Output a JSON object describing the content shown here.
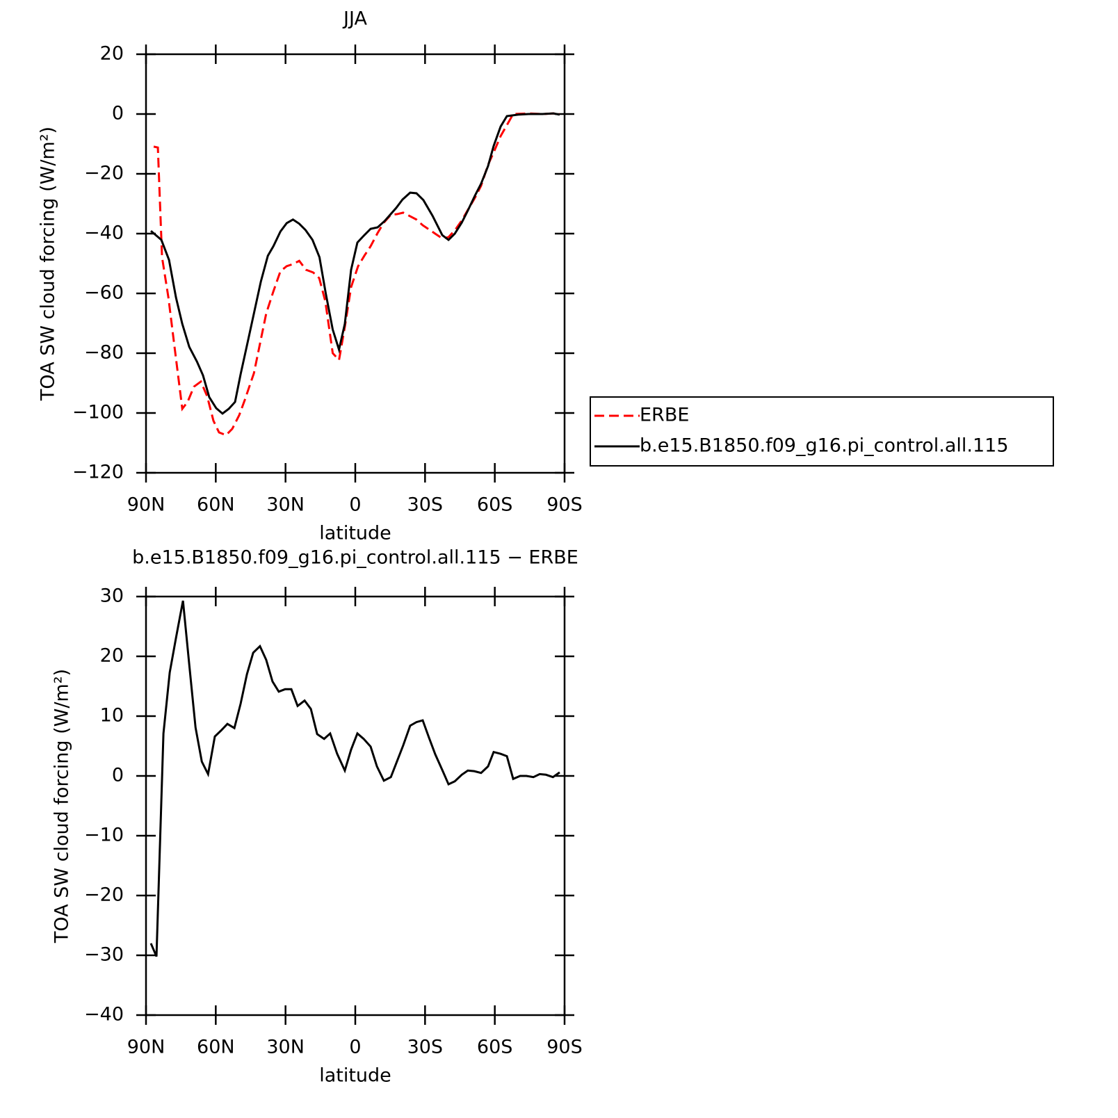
{
  "chart_data": [
    {
      "type": "line",
      "title": "JJA",
      "xlabel": "latitude",
      "ylabel": "TOA SW cloud forcing (W/m²)",
      "xlim": [
        90,
        -90
      ],
      "xticks": [
        {
          "value": 90,
          "label": "90N"
        },
        {
          "value": 60,
          "label": "60N"
        },
        {
          "value": 30,
          "label": "30N"
        },
        0,
        {
          "value": -30,
          "label": "30S"
        },
        {
          "value": -60,
          "label": "60S"
        },
        {
          "value": -90,
          "label": "90S"
        }
      ],
      "ylim": [
        -120,
        20
      ],
      "yticks": [
        {
          "value": -120,
          "label": "−120"
        },
        {
          "value": -100,
          "label": "−100"
        },
        {
          "value": -80,
          "label": "−80"
        },
        {
          "value": -60,
          "label": "−60"
        },
        {
          "value": -40,
          "label": "−40"
        },
        {
          "value": -20,
          "label": "−20"
        },
        0,
        20
      ],
      "legend": "right",
      "series": [
        {
          "name": "ERBE",
          "color": "#ff0000",
          "dashed": true,
          "x": [
            86.7,
            84.9,
            83.1,
            80.4,
            77.7,
            74.4,
            72.1,
            69.4,
            66.4,
            63.7,
            61.0,
            58.6,
            55.6,
            52.9,
            49.9,
            47.5,
            43.6,
            38.3,
            35.3,
            32.2,
            29.5,
            26.8,
            24.1,
            21.2,
            18.1,
            15.5,
            12.9,
            9.7,
            7.0,
            4.5,
            1.8,
            -1.2,
            -3.9,
            -6.6,
            -9.6,
            -12.3,
            -15.3,
            -17.9,
            -20.6,
            -23.6,
            -26.3,
            -29.0,
            -31.7,
            -34.7,
            -37.4,
            -40.1,
            -43.1,
            -45.8,
            -48.4,
            -51.4,
            -54.1,
            -57.1,
            -59.8,
            -62.5,
            -65.2,
            -67.9,
            -74.5,
            -80.5,
            -85.2,
            -87.9
          ],
          "values": [
            -10.9,
            -11.2,
            -47.9,
            -61.2,
            -78.1,
            -98.6,
            -96.3,
            -91.2,
            -89.5,
            -94.4,
            -102.6,
            -106.5,
            -107.4,
            -105.3,
            -100.7,
            -95.6,
            -86.7,
            -66.7,
            -59.5,
            -52.6,
            -50.9,
            -50.2,
            -49.1,
            -52.1,
            -53,
            -54.9,
            -62.6,
            -80,
            -82.3,
            -71.2,
            -57.9,
            -50.9,
            -47.4,
            -44.2,
            -39.8,
            -36.3,
            -33.7,
            -33.5,
            -33,
            -34.2,
            -35.3,
            -37.2,
            -38.6,
            -40.2,
            -41.6,
            -41.2,
            -38.6,
            -35.6,
            -32.1,
            -28.1,
            -24,
            -17,
            -12.3,
            -7.4,
            -3.7,
            0,
            0.2,
            0,
            0.2,
            0
          ]
        },
        {
          "name": "b.e15.B1850.f09_g16.pi_control.all.115",
          "color": "#000000",
          "dashed": false,
          "x": [
            87.9,
            83.4,
            80.1,
            77.1,
            74.4,
            71.4,
            68.1,
            65.5,
            62.8,
            59.8,
            57.1,
            54.4,
            51.7,
            49.3,
            46.0,
            40.6,
            37.6,
            35.2,
            32.2,
            29.5,
            26.8,
            24.1,
            21.4,
            18.4,
            15.4,
            12.7,
            9.7,
            7.0,
            4.5,
            1.8,
            -0.9,
            -3.9,
            -6.6,
            -9.6,
            -12.6,
            -15.0,
            -17.6,
            -20.3,
            -23.6,
            -26.3,
            -29.3,
            -33.2,
            -37.4,
            -40.1,
            -42.8,
            -45.8,
            -48.4,
            -51.4,
            -54.1,
            -57.1,
            -59.5,
            -62.5,
            -65.2,
            -70.0,
            -74.5,
            -80.5,
            -85.2,
            -87.9
          ],
          "values": [
            -39.1,
            -42.1,
            -48.8,
            -61.4,
            -70.2,
            -77.9,
            -82.8,
            -87.4,
            -94.7,
            -98.4,
            -100.2,
            -98.6,
            -96.3,
            -87,
            -75.3,
            -56,
            -47.4,
            -44.2,
            -39.3,
            -36.5,
            -35.3,
            -36.7,
            -38.8,
            -42.1,
            -47.9,
            -60,
            -72.1,
            -78.8,
            -70.2,
            -52.1,
            -43,
            -40.5,
            -38.4,
            -37.9,
            -35.8,
            -33.7,
            -31.4,
            -28.6,
            -26.3,
            -26.5,
            -28.8,
            -34,
            -40.5,
            -42.1,
            -40,
            -36.3,
            -32.3,
            -27.4,
            -23.3,
            -17.4,
            -10.7,
            -4.2,
            -0.7,
            -0.2,
            0,
            0,
            0.2,
            -0.2
          ]
        }
      ]
    },
    {
      "type": "line",
      "title": "b.e15.B1850.f09_g16.pi_control.all.115 − ERBE",
      "xlabel": "latitude",
      "ylabel": "TOA SW cloud forcing (W/m²)",
      "xlim": [
        90,
        -90
      ],
      "xticks": [
        {
          "value": 90,
          "label": "90N"
        },
        {
          "value": 60,
          "label": "60N"
        },
        {
          "value": 30,
          "label": "30N"
        },
        0,
        {
          "value": -30,
          "label": "30S"
        },
        {
          "value": -60,
          "label": "60S"
        },
        {
          "value": -90,
          "label": "90S"
        }
      ],
      "ylim": [
        -40,
        30
      ],
      "yticks": [
        {
          "value": -40,
          "label": "−40"
        },
        {
          "value": -30,
          "label": "−30"
        },
        {
          "value": -20,
          "label": "−20"
        },
        {
          "value": -10,
          "label": "−10"
        },
        0,
        10,
        20,
        30
      ],
      "series": [
        {
          "color": "#000000",
          "dashed": false,
          "x": [
            87.9,
            85.5,
            82.5,
            79.8,
            77.1,
            74.1,
            71.4,
            68.7,
            66.0,
            63.3,
            60.4,
            57.7,
            55.0,
            52.0,
            49.3,
            46.6,
            43.9,
            41.0,
            38.3,
            35.6,
            32.9,
            30.2,
            27.5,
            24.8,
            21.8,
            19.1,
            16.4,
            13.4,
            10.8,
            7.8,
            4.5,
            1.8,
            -0.9,
            -3.6,
            -6.6,
            -9.3,
            -12.3,
            -15.3,
            -17.6,
            -20.6,
            -23.6,
            -26.3,
            -29.0,
            -31.7,
            -34.4,
            -37.4,
            -40.1,
            -42.8,
            -45.8,
            -48.4,
            -51.1,
            -54.1,
            -57.1,
            -59.5,
            -62.5,
            -65.2,
            -67.9,
            -70.9,
            -73.6,
            -76.6,
            -79.3,
            -82.0,
            -85.0,
            -87.9
          ],
          "values": [
            -28,
            -30.2,
            7.1,
            17.3,
            23.1,
            29.3,
            18.6,
            8.1,
            2.4,
            0.3,
            6.6,
            7.6,
            8.7,
            8,
            12.1,
            17,
            20.6,
            21.7,
            19.4,
            15.8,
            14.1,
            14.5,
            14.5,
            11.7,
            12.6,
            11.2,
            7,
            6.2,
            7.1,
            3.7,
            0.9,
            4.4,
            7.1,
            6.2,
            4.9,
            1.6,
            -0.8,
            -0.2,
            2.1,
            5.1,
            8.4,
            9,
            9.3,
            6.4,
            3.6,
            1,
            -1.4,
            -0.9,
            0.2,
            0.9,
            0.8,
            0.5,
            1.6,
            4,
            3.7,
            3.3,
            -0.5,
            0,
            0,
            -0.2,
            0.3,
            0.2,
            -0.2,
            0.6
          ]
        }
      ]
    }
  ]
}
